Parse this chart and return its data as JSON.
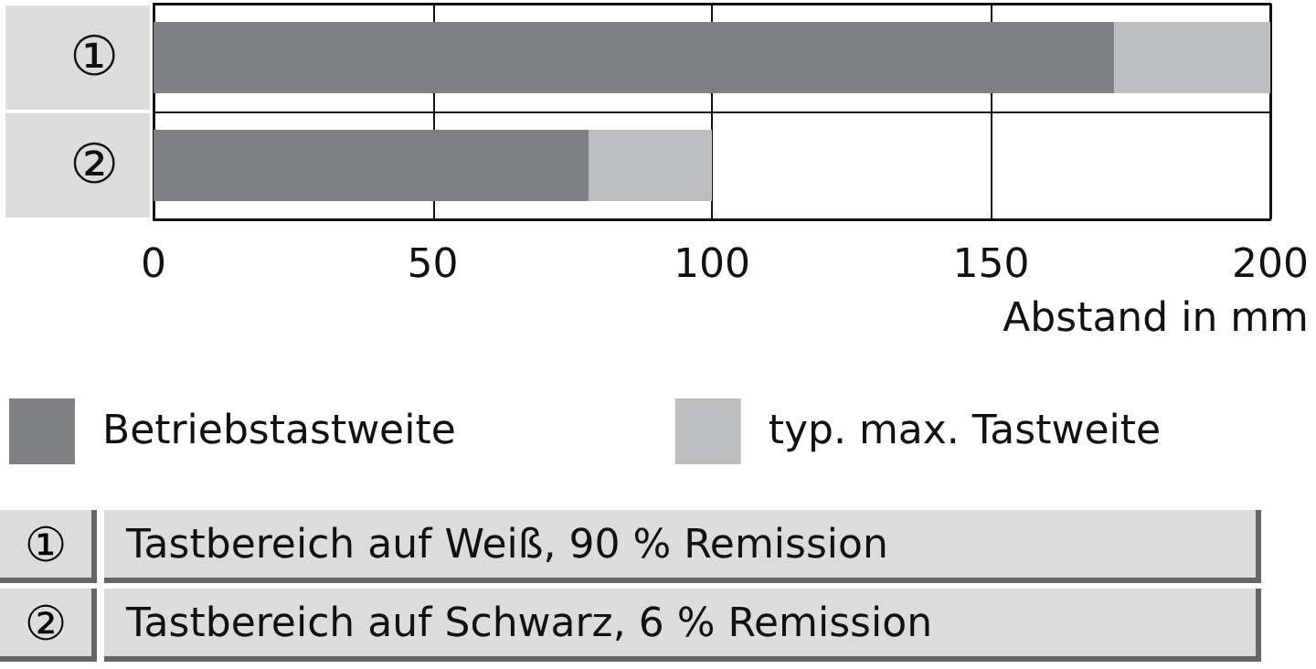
{
  "chart_data": {
    "type": "bar",
    "orientation": "horizontal",
    "stacked": true,
    "categories": [
      "①",
      "②"
    ],
    "series": [
      {
        "name": "Betriebstastweite",
        "color": "#7f8083",
        "values": [
          172,
          78
        ]
      },
      {
        "name": "typ. max. Tastweite",
        "color": "#bdbec0",
        "values": [
          28,
          22
        ]
      }
    ],
    "xlim": [
      0,
      200
    ],
    "xticks": [
      0,
      50,
      100,
      150,
      200
    ],
    "xlabel": "Abstand in mm",
    "grid": true,
    "legend": "bottom",
    "annotations": [
      "Tastbereich auf Weiß, 90 % Remission",
      "Tastbereich auf Schwarz, 6 % Remission"
    ]
  }
}
